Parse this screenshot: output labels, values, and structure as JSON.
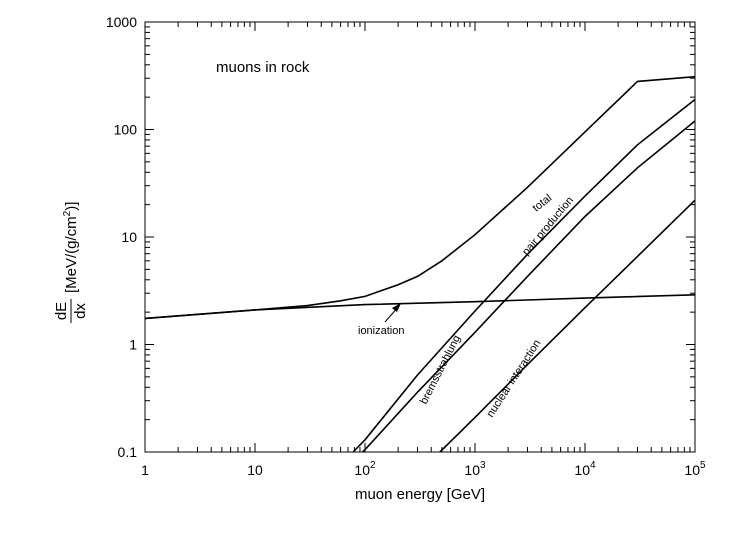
{
  "chart_data": {
    "type": "line",
    "xscale": "log",
    "yscale": "log",
    "xlim": [
      1,
      100000
    ],
    "ylim": [
      0.1,
      1000
    ],
    "xlabel": "muon energy [GeV]",
    "ylabel": {
      "fraction_num": "dE",
      "fraction_den": "dx",
      "text": "[MeV/(g/cm",
      "sup": "2",
      "close": ")]"
    },
    "annotation": "muons in rock",
    "x_ticks": [
      {
        "value": 1,
        "label": "1",
        "base": "",
        "exp": ""
      },
      {
        "value": 10,
        "label": "10",
        "base": "",
        "exp": ""
      },
      {
        "value": 100,
        "label": "",
        "base": "10",
        "exp": "2"
      },
      {
        "value": 1000,
        "label": "",
        "base": "10",
        "exp": "3"
      },
      {
        "value": 10000,
        "label": "",
        "base": "10",
        "exp": "4"
      },
      {
        "value": 100000,
        "label": "",
        "base": "10",
        "exp": "5"
      }
    ],
    "y_ticks": [
      {
        "value": 0.1,
        "label": "0.1"
      },
      {
        "value": 1,
        "label": "1"
      },
      {
        "value": 10,
        "label": "10"
      },
      {
        "value": 100,
        "label": "100"
      },
      {
        "value": 1000,
        "label": "1000"
      }
    ],
    "series": [
      {
        "name": "total",
        "label": "total",
        "x": [
          1,
          10,
          30,
          60,
          100,
          200,
          300,
          500,
          1000,
          3000,
          10000,
          30000,
          100000
        ],
        "y": [
          1.75,
          2.1,
          2.3,
          2.55,
          2.8,
          3.6,
          4.3,
          6.0,
          10.5,
          29,
          95,
          280,
          310
        ]
      },
      {
        "name": "pair production",
        "label": "pair production",
        "x": [
          78,
          100,
          300,
          1000,
          3000,
          10000,
          30000,
          100000
        ],
        "y": [
          0.1,
          0.13,
          0.52,
          2.05,
          6.9,
          24,
          72,
          190
        ]
      },
      {
        "name": "bremsstrahlung",
        "label": "bremsstrahlung",
        "x": [
          95,
          100,
          300,
          1000,
          3000,
          10000,
          30000,
          100000
        ],
        "y": [
          0.1,
          0.105,
          0.36,
          1.3,
          4.3,
          15.5,
          44,
          120
        ]
      },
      {
        "name": "ionization",
        "label": "ionization",
        "x": [
          1,
          10,
          100,
          1000,
          10000,
          100000
        ],
        "y": [
          1.75,
          2.1,
          2.35,
          2.5,
          2.7,
          2.9
        ]
      },
      {
        "name": "nuclear interaction",
        "label": "nuclear  interaction",
        "x": [
          480,
          1000,
          3000,
          10000,
          30000,
          100000
        ],
        "y": [
          0.1,
          0.21,
          0.65,
          2.2,
          6.6,
          22
        ]
      }
    ]
  }
}
